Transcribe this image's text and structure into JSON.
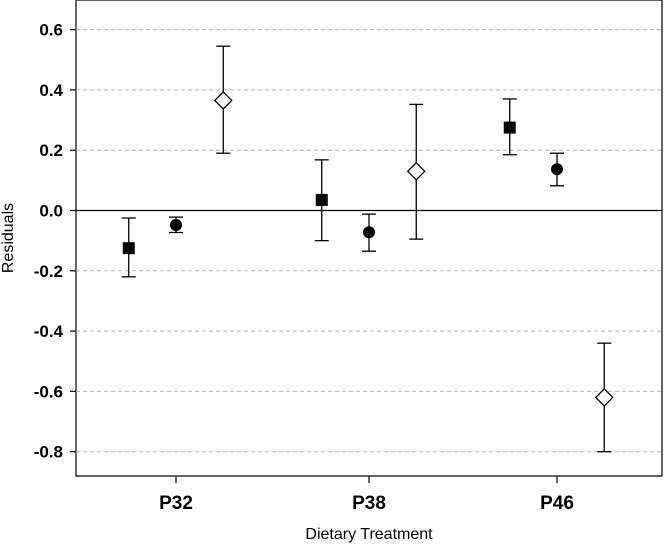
{
  "chart_data": {
    "type": "scatter",
    "xlabel": "Dietary Treatment",
    "ylabel": "Residuals",
    "categories": [
      "P32",
      "P38",
      "P46"
    ],
    "ylim": [
      -0.87,
      0.66
    ],
    "yticks": [
      0.6,
      0.4,
      0.2,
      0.0,
      -0.2,
      -0.4,
      -0.6,
      -0.8
    ],
    "ytick_labels": [
      "0.6",
      "0.4",
      "0.2",
      "0.0",
      "-0.2",
      "-0.4",
      "-0.6",
      "-0.8"
    ],
    "grid": "horizontal dashed",
    "legend": "none",
    "reference_line": 0.0,
    "series": [
      {
        "marker": "filled-square",
        "category_offset": -0.35,
        "values": [
          -0.125,
          0.035,
          0.275
        ],
        "err_low": [
          -0.22,
          -0.1,
          0.185
        ],
        "err_high": [
          -0.025,
          0.168,
          0.37
        ]
      },
      {
        "marker": "filled-circle",
        "category_offset": 0.0,
        "values": [
          -0.048,
          -0.072,
          0.137
        ],
        "err_low": [
          -0.073,
          -0.135,
          0.082
        ],
        "err_high": [
          -0.022,
          -0.012,
          0.19
        ]
      },
      {
        "marker": "open-diamond",
        "category_offset": 0.35,
        "values": [
          0.365,
          0.13,
          -0.62
        ],
        "err_low": [
          0.19,
          -0.095,
          -0.8
        ],
        "err_high": [
          0.545,
          0.352,
          -0.44
        ]
      }
    ],
    "colors": {
      "marker": "#000000",
      "open_fill": "#ffffff",
      "grid": "#b3b3b3",
      "axis": "#000000"
    }
  }
}
